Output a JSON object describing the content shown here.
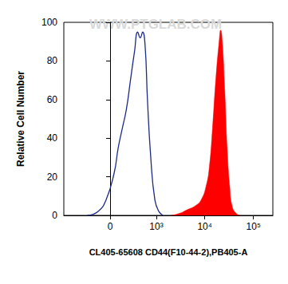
{
  "chart_data": {
    "type": "line",
    "x_label": "CL405-65608 CD44(F10-44-2),PB405-A",
    "y_label": "Relative Cell Number",
    "annotations": [
      "WWW.PTGLAB.COM"
    ],
    "xlim": [
      -1000,
      250000
    ],
    "xticks": [
      {
        "value": 0,
        "label": "0"
      },
      {
        "value": 1000,
        "label": "10³"
      },
      {
        "value": 10000,
        "label": "10⁴"
      },
      {
        "value": 100000,
        "label": "10⁵"
      }
    ],
    "ylim": [
      0,
      100
    ],
    "yticks": [
      0,
      20,
      40,
      60,
      80,
      100
    ],
    "grid": false,
    "series": [
      {
        "type": "line",
        "color": "#1c2a8a",
        "x": [
          -295,
          -138,
          -44,
          44,
          89,
          138,
          193,
          254,
          325,
          388,
          445,
          504,
          572,
          645,
          760,
          930,
          1130,
          1370
        ],
        "values": [
          0,
          2,
          8,
          22,
          35,
          45,
          55,
          70,
          85,
          95,
          92,
          95,
          88,
          60,
          30,
          8,
          2,
          0
        ]
      },
      {
        "type": "area",
        "color": "#ff0000",
        "x": [
          2000,
          3000,
          4400,
          6400,
          8400,
          10600,
          12400,
          14400,
          16800,
          19700,
          21200,
          22900,
          25700,
          28800,
          32500,
          36300,
          44000,
          53000
        ],
        "values": [
          0,
          1,
          3,
          5,
          8,
          15,
          25,
          45,
          70,
          90,
          96,
          90,
          65,
          35,
          15,
          5,
          1,
          0
        ]
      }
    ]
  }
}
